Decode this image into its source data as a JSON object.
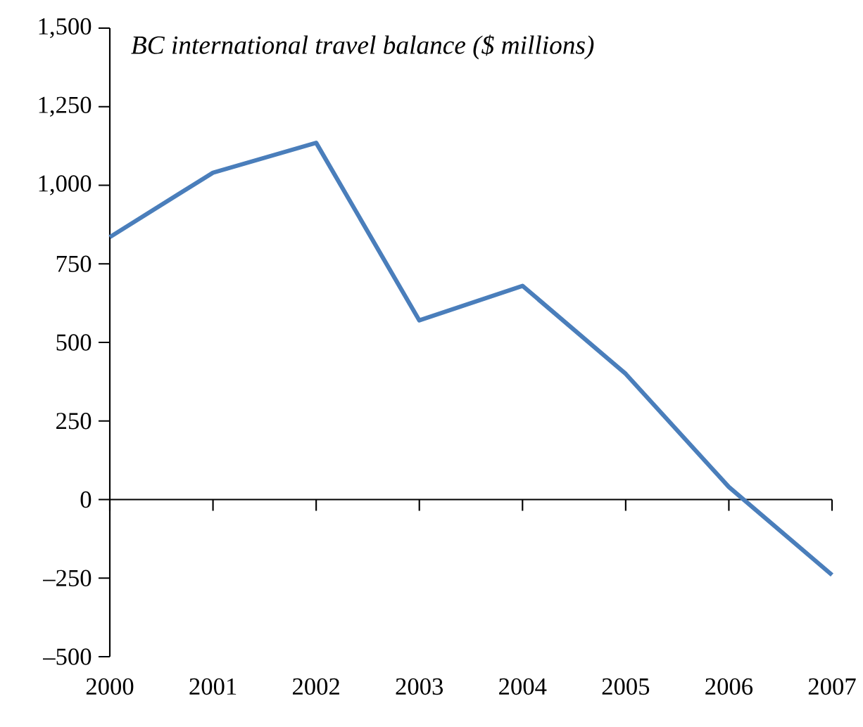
{
  "chart_data": {
    "type": "line",
    "title": "BC international travel balance ($ millions)",
    "categories": [
      "2000",
      "2001",
      "2002",
      "2003",
      "2004",
      "2005",
      "2006",
      "2007"
    ],
    "series": [
      {
        "color": "#4a7ebb",
        "values": [
          835,
          1040,
          1135,
          570,
          680,
          400,
          40,
          -240
        ]
      }
    ],
    "ylim": [
      -500,
      1500
    ],
    "yticks": [
      {
        "value": -500,
        "label": "–500"
      },
      {
        "value": -250,
        "label": "–250"
      },
      0,
      250,
      500,
      750,
      {
        "value": 1000,
        "label": "1,000"
      },
      {
        "value": 1250,
        "label": "1,250"
      },
      {
        "value": 1500,
        "label": "1,500"
      }
    ],
    "marker": "none",
    "line_style": "solid"
  }
}
